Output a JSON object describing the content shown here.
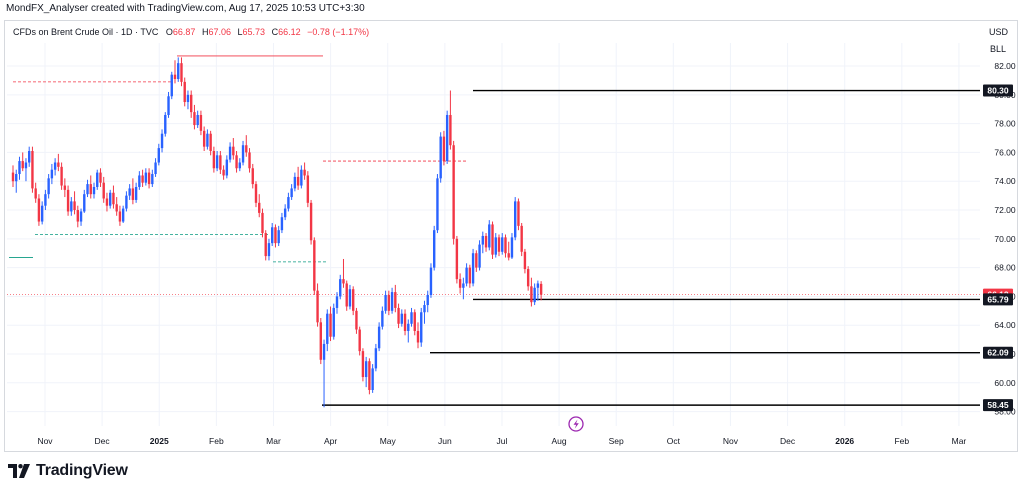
{
  "header": {
    "creator_line": "MondFX_Analyser created with TradingView.com, Aug 17, 2025 10:53 UTC+3:30"
  },
  "legend": {
    "symbol": "CFDs on Brent Crude Oil · 1D · TVC",
    "open_label": "O",
    "open": "66.87",
    "high_label": "H",
    "high": "67.06",
    "low_label": "L",
    "low": "65.73",
    "close_label": "C",
    "close": "66.12",
    "change": "−0.78 (−1.17%)"
  },
  "axis_units": {
    "currency": "USD",
    "unit": "BLL"
  },
  "footer": {
    "brand": "TradingView"
  },
  "colors": {
    "up": "#2962ff",
    "down": "#f23645",
    "text": "#131722",
    "grid": "#f0f3fa",
    "pdl": "#089981",
    "pdh": "#f23645"
  },
  "icons": {
    "lightning": "lightning-icon",
    "logo": "tradingview-logo-icon"
  },
  "chart_data": {
    "type": "candlestick",
    "y_ticks": [
      "82.00",
      "80.00",
      "78.00",
      "76.00",
      "74.00",
      "72.00",
      "70.00",
      "68.00",
      "66.00",
      "64.00",
      "62.00",
      "60.00",
      "58.00"
    ],
    "ylim": [
      57.0,
      83.6
    ],
    "x_ticks": [
      "Nov",
      "Dec",
      "2025",
      "Feb",
      "Mar",
      "Apr",
      "May",
      "Jun",
      "Jul",
      "Aug",
      "Sep",
      "Oct",
      "Nov",
      "Dec",
      "2026",
      "Feb",
      "Mar"
    ],
    "price_labels": [
      {
        "text": "80.30",
        "value": 80.3,
        "kind": "level"
      },
      {
        "text": "66.12",
        "value": 66.12,
        "kind": "current"
      },
      {
        "text": "65.79",
        "value": 65.79,
        "kind": "level"
      },
      {
        "text": "62.09",
        "value": 62.09,
        "kind": "level"
      },
      {
        "text": "58.45",
        "value": 58.45,
        "kind": "level"
      }
    ],
    "horizontal_levels": [
      {
        "value": 80.3,
        "from": "Jun",
        "to_right_edge": true
      },
      {
        "value": 65.79,
        "from": "Jun",
        "to_right_edge": true
      },
      {
        "value": 62.09,
        "from": "May",
        "to_right_edge": true
      },
      {
        "value": 58.45,
        "from": "Apr",
        "to_right_edge": true
      }
    ],
    "candles": [
      [
        74.6,
        75.1,
        73.6,
        74.0
      ],
      [
        74.0,
        74.8,
        73.2,
        74.5
      ],
      [
        74.5,
        75.7,
        74.1,
        75.4
      ],
      [
        75.4,
        76.0,
        74.7,
        74.9
      ],
      [
        74.9,
        75.6,
        74.0,
        75.3
      ],
      [
        75.3,
        76.4,
        75.0,
        76.1
      ],
      [
        76.1,
        76.4,
        73.2,
        73.5
      ],
      [
        73.5,
        73.9,
        72.5,
        72.8
      ],
      [
        72.8,
        73.1,
        70.9,
        71.2
      ],
      [
        71.2,
        72.6,
        71.0,
        72.3
      ],
      [
        72.3,
        73.4,
        72.0,
        73.1
      ],
      [
        73.1,
        74.5,
        72.8,
        74.2
      ],
      [
        74.2,
        75.2,
        73.8,
        74.8
      ],
      [
        74.8,
        75.6,
        74.4,
        75.3
      ],
      [
        75.3,
        75.9,
        74.7,
        75.0
      ],
      [
        75.0,
        75.3,
        73.4,
        73.7
      ],
      [
        73.7,
        74.2,
        72.9,
        73.4
      ],
      [
        73.4,
        73.7,
        71.6,
        71.9
      ],
      [
        71.9,
        72.9,
        71.6,
        72.6
      ],
      [
        72.6,
        73.3,
        71.7,
        72.0
      ],
      [
        72.0,
        72.3,
        70.8,
        71.2
      ],
      [
        71.2,
        72.1,
        70.9,
        71.9
      ],
      [
        71.9,
        73.4,
        71.8,
        73.1
      ],
      [
        73.1,
        74.1,
        72.9,
        73.8
      ],
      [
        73.8,
        74.4,
        72.8,
        73.1
      ],
      [
        73.1,
        73.9,
        72.8,
        73.6
      ],
      [
        73.6,
        74.8,
        73.4,
        74.6
      ],
      [
        74.6,
        74.9,
        73.6,
        73.9
      ],
      [
        73.9,
        74.3,
        72.5,
        72.8
      ],
      [
        72.8,
        73.2,
        71.9,
        72.3
      ],
      [
        72.3,
        73.4,
        72.1,
        73.2
      ],
      [
        73.2,
        73.7,
        72.1,
        72.4
      ],
      [
        72.4,
        72.9,
        71.6,
        71.9
      ],
      [
        71.9,
        72.3,
        70.9,
        71.2
      ],
      [
        71.2,
        72.3,
        71.1,
        72.1
      ],
      [
        72.1,
        73.3,
        71.9,
        73.0
      ],
      [
        73.0,
        73.8,
        72.7,
        73.5
      ],
      [
        73.5,
        74.2,
        72.4,
        72.7
      ],
      [
        72.7,
        73.9,
        72.5,
        73.6
      ],
      [
        73.6,
        74.7,
        73.4,
        74.4
      ],
      [
        74.4,
        74.8,
        73.6,
        73.9
      ],
      [
        73.9,
        74.9,
        73.7,
        74.6
      ],
      [
        74.6,
        74.9,
        73.5,
        73.8
      ],
      [
        73.8,
        74.8,
        73.6,
        74.5
      ],
      [
        74.5,
        75.6,
        74.3,
        75.3
      ],
      [
        75.3,
        76.6,
        75.1,
        76.3
      ],
      [
        76.3,
        77.6,
        76.0,
        77.3
      ],
      [
        77.3,
        78.8,
        77.1,
        78.6
      ],
      [
        78.6,
        80.2,
        78.4,
        79.9
      ],
      [
        79.9,
        81.6,
        79.7,
        81.4
      ],
      [
        81.4,
        82.4,
        80.8,
        81.1
      ],
      [
        81.1,
        82.6,
        80.9,
        82.2
      ],
      [
        82.2,
        82.6,
        80.6,
        80.9
      ],
      [
        80.9,
        81.2,
        79.2,
        79.5
      ],
      [
        79.5,
        80.3,
        79.0,
        80.0
      ],
      [
        80.0,
        80.3,
        78.4,
        78.8
      ],
      [
        78.8,
        79.3,
        77.6,
        77.9
      ],
      [
        77.9,
        78.9,
        77.7,
        78.6
      ],
      [
        78.6,
        78.9,
        77.2,
        77.5
      ],
      [
        77.5,
        77.8,
        76.1,
        76.4
      ],
      [
        76.4,
        77.6,
        76.2,
        77.3
      ],
      [
        77.3,
        77.5,
        75.8,
        76.1
      ],
      [
        76.1,
        76.4,
        74.6,
        74.9
      ],
      [
        74.9,
        76.1,
        74.7,
        75.8
      ],
      [
        75.8,
        76.1,
        74.5,
        74.8
      ],
      [
        74.8,
        75.1,
        74.1,
        74.4
      ],
      [
        74.4,
        75.8,
        74.2,
        75.5
      ],
      [
        75.5,
        76.7,
        75.3,
        76.4
      ],
      [
        76.4,
        77.0,
        75.5,
        75.8
      ],
      [
        75.8,
        76.1,
        74.6,
        74.9
      ],
      [
        74.9,
        75.6,
        74.7,
        75.3
      ],
      [
        75.3,
        76.8,
        75.1,
        76.5
      ],
      [
        76.5,
        77.2,
        75.7,
        76.0
      ],
      [
        76.0,
        76.3,
        74.6,
        74.9
      ],
      [
        74.9,
        75.2,
        73.5,
        73.8
      ],
      [
        73.8,
        74.0,
        72.2,
        72.5
      ],
      [
        72.5,
        73.1,
        71.5,
        71.8
      ],
      [
        71.8,
        72.1,
        70.1,
        70.4
      ],
      [
        70.4,
        70.6,
        68.5,
        68.8
      ],
      [
        68.8,
        70.0,
        68.5,
        69.7
      ],
      [
        69.7,
        71.1,
        69.5,
        70.8
      ],
      [
        70.8,
        71.0,
        69.4,
        69.7
      ],
      [
        69.7,
        70.9,
        69.5,
        70.6
      ],
      [
        70.6,
        71.8,
        70.4,
        71.5
      ],
      [
        71.5,
        72.4,
        71.3,
        72.1
      ],
      [
        72.1,
        73.2,
        71.9,
        72.9
      ],
      [
        72.9,
        73.8,
        72.7,
        73.5
      ],
      [
        73.5,
        74.6,
        73.3,
        74.3
      ],
      [
        74.3,
        75.0,
        73.4,
        73.7
      ],
      [
        73.7,
        75.1,
        73.5,
        74.8
      ],
      [
        74.8,
        75.3,
        74.1,
        74.4
      ],
      [
        74.4,
        74.7,
        72.2,
        72.5
      ],
      [
        72.5,
        72.7,
        69.6,
        69.9
      ],
      [
        69.9,
        70.1,
        66.1,
        66.4
      ],
      [
        66.4,
        66.9,
        63.9,
        64.2
      ],
      [
        64.2,
        64.5,
        61.3,
        61.6
      ],
      [
        61.6,
        63.0,
        58.3,
        62.7
      ],
      [
        62.7,
        65.1,
        62.2,
        64.8
      ],
      [
        64.8,
        65.3,
        62.9,
        63.2
      ],
      [
        63.2,
        65.5,
        63.0,
        65.2
      ],
      [
        65.2,
        66.3,
        64.8,
        66.0
      ],
      [
        66.0,
        67.5,
        65.8,
        67.2
      ],
      [
        67.2,
        68.6,
        66.6,
        66.9
      ],
      [
        66.9,
        67.1,
        65.0,
        65.3
      ],
      [
        65.3,
        66.8,
        65.1,
        66.5
      ],
      [
        66.5,
        66.7,
        64.7,
        65.0
      ],
      [
        65.0,
        65.2,
        63.4,
        63.7
      ],
      [
        63.7,
        63.9,
        61.9,
        62.2
      ],
      [
        62.2,
        62.4,
        60.1,
        60.4
      ],
      [
        60.4,
        61.8,
        59.7,
        61.5
      ],
      [
        61.5,
        61.7,
        59.2,
        59.5
      ],
      [
        59.5,
        61.3,
        59.3,
        61.0
      ],
      [
        61.0,
        62.7,
        60.8,
        62.4
      ],
      [
        62.4,
        64.2,
        62.2,
        63.9
      ],
      [
        63.9,
        65.3,
        63.7,
        65.0
      ],
      [
        65.0,
        66.4,
        64.8,
        66.1
      ],
      [
        66.1,
        66.4,
        64.7,
        65.0
      ],
      [
        65.0,
        66.6,
        64.8,
        66.3
      ],
      [
        66.3,
        66.8,
        64.9,
        65.2
      ],
      [
        65.2,
        65.5,
        63.8,
        64.1
      ],
      [
        64.1,
        65.1,
        63.9,
        64.8
      ],
      [
        64.8,
        65.1,
        63.3,
        63.6
      ],
      [
        63.6,
        64.4,
        62.8,
        64.1
      ],
      [
        64.1,
        65.2,
        63.9,
        64.9
      ],
      [
        64.9,
        65.1,
        63.3,
        63.6
      ],
      [
        63.6,
        64.2,
        62.4,
        62.8
      ],
      [
        62.8,
        65.2,
        62.5,
        64.9
      ],
      [
        64.9,
        65.7,
        64.1,
        65.4
      ],
      [
        65.4,
        66.4,
        64.9,
        66.1
      ],
      [
        66.1,
        68.3,
        65.9,
        68.0
      ],
      [
        68.0,
        70.9,
        67.8,
        70.6
      ],
      [
        70.6,
        74.5,
        70.4,
        74.2
      ],
      [
        74.2,
        77.4,
        73.9,
        77.1
      ],
      [
        77.1,
        77.5,
        75.1,
        75.4
      ],
      [
        75.4,
        78.9,
        75.2,
        78.6
      ],
      [
        78.6,
        80.3,
        76.2,
        76.5
      ],
      [
        76.5,
        76.8,
        69.6,
        70.0
      ],
      [
        70.0,
        70.2,
        66.9,
        67.2
      ],
      [
        67.2,
        67.6,
        66.2,
        66.6
      ],
      [
        66.6,
        67.3,
        65.8,
        66.9
      ],
      [
        66.9,
        68.3,
        66.7,
        68.0
      ],
      [
        68.0,
        68.2,
        66.6,
        66.9
      ],
      [
        66.9,
        69.3,
        66.7,
        69.0
      ],
      [
        69.0,
        69.2,
        67.7,
        68.0
      ],
      [
        68.0,
        69.9,
        67.8,
        69.6
      ],
      [
        69.6,
        70.5,
        69.0,
        70.2
      ],
      [
        70.2,
        70.4,
        69.1,
        69.4
      ],
      [
        69.4,
        71.3,
        69.2,
        71.0
      ],
      [
        71.0,
        71.2,
        68.6,
        68.9
      ],
      [
        68.9,
        70.4,
        68.7,
        70.1
      ],
      [
        70.1,
        70.3,
        68.8,
        69.1
      ],
      [
        69.1,
        70.4,
        68.9,
        70.1
      ],
      [
        70.1,
        70.3,
        68.7,
        69.0
      ],
      [
        69.0,
        69.8,
        68.5,
        68.7
      ],
      [
        68.7,
        70.4,
        68.6,
        70.1
      ],
      [
        70.1,
        72.9,
        69.9,
        72.6
      ],
      [
        72.6,
        72.8,
        70.6,
        70.9
      ],
      [
        70.9,
        71.1,
        68.8,
        69.1
      ],
      [
        69.1,
        69.3,
        67.6,
        67.9
      ],
      [
        67.9,
        68.1,
        66.4,
        66.7
      ],
      [
        66.7,
        67.3,
        65.3,
        65.6
      ],
      [
        65.6,
        66.9,
        65.4,
        66.6
      ],
      [
        66.6,
        67.1,
        65.7,
        66.9
      ],
      [
        66.87,
        67.06,
        65.73,
        66.12
      ]
    ]
  }
}
